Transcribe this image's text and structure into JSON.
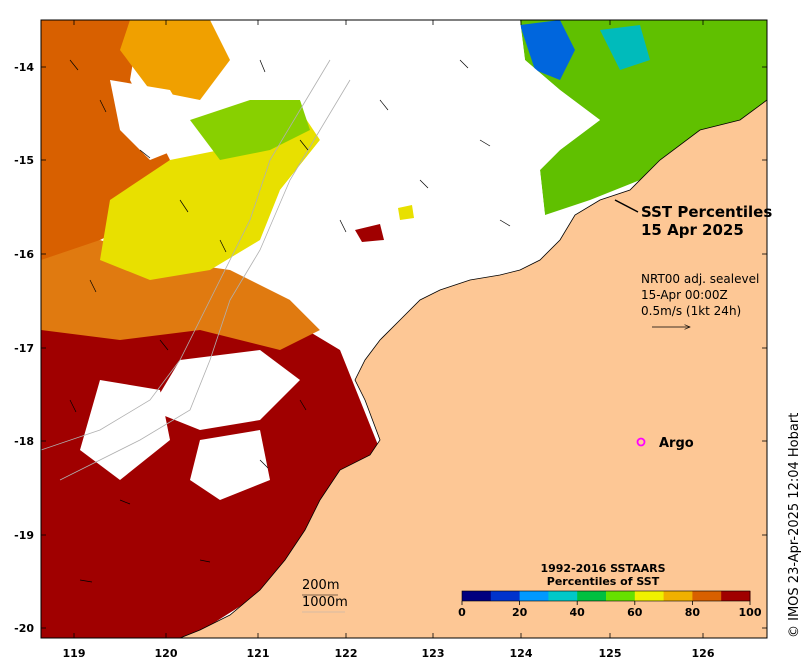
{
  "title": {
    "line1": "SST Percentiles",
    "line2": "15 Apr 2025"
  },
  "currents_note": {
    "line1": "NRT00 adj. sealevel",
    "line2": "15-Apr 00:00Z",
    "line3": "0.5m/s (1kt 24h)"
  },
  "argo_label": "Argo",
  "argo_color": "#ff00ff",
  "credit": "© IMOS 23-Apr-2025 12:04 Hobart",
  "isobaths": [
    "200m",
    "1000m"
  ],
  "x_ticks": [
    "119",
    "120",
    "121",
    "122",
    "123",
    "124",
    "125",
    "126"
  ],
  "y_ticks": [
    "-14",
    "-15",
    "-16",
    "-17",
    "-18",
    "-19",
    "-20"
  ],
  "colorbar": {
    "title1": "1992-2016 SSTAARS",
    "title2": "Percentiles of SST",
    "ticks": [
      "0",
      "20",
      "40",
      "60",
      "80",
      "100"
    ],
    "colors": [
      "#00007f",
      "#0033cc",
      "#0099ff",
      "#00c8c8",
      "#00c040",
      "#66e000",
      "#f0f000",
      "#f0b000",
      "#d86000",
      "#a00000"
    ]
  },
  "land_color": "#fdc795",
  "cloud_color": "#ffffff"
}
